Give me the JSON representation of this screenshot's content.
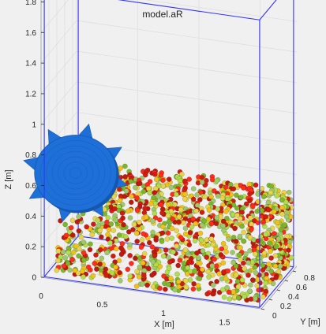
{
  "chart_data": {
    "type": "scatter3d",
    "title": "model.aR",
    "xlabel": "X [m]",
    "ylabel": "Y [m]",
    "zlabel": "Z [m]",
    "xlim": [
      0,
      1.8
    ],
    "ylim": [
      0,
      0.9
    ],
    "zlim": [
      0,
      1.9
    ],
    "x_ticks": [
      "0",
      "0.5",
      "1",
      "1.5"
    ],
    "y_ticks": [
      "0",
      "0.2",
      "0.4",
      "0.6",
      "0.8"
    ],
    "z_ticks": [
      "0",
      "0.2",
      "0.4",
      "0.6",
      "0.8",
      "1",
      "1.2",
      "1.4",
      "1.6",
      "1.8"
    ],
    "grid": true,
    "bed_height": 0.5,
    "particle_colors": [
      "#d21c12",
      "#f0c218",
      "#7ab82a",
      "#9ec96b",
      "#c01a10",
      "#e8d44a",
      "#b0dd4a",
      "#ff2c1c"
    ],
    "gear": {
      "color": "#1e6fd8",
      "center": [
        0.25,
        0.1,
        0.68
      ],
      "teeth": 8
    },
    "box_color": "#3232ff"
  }
}
